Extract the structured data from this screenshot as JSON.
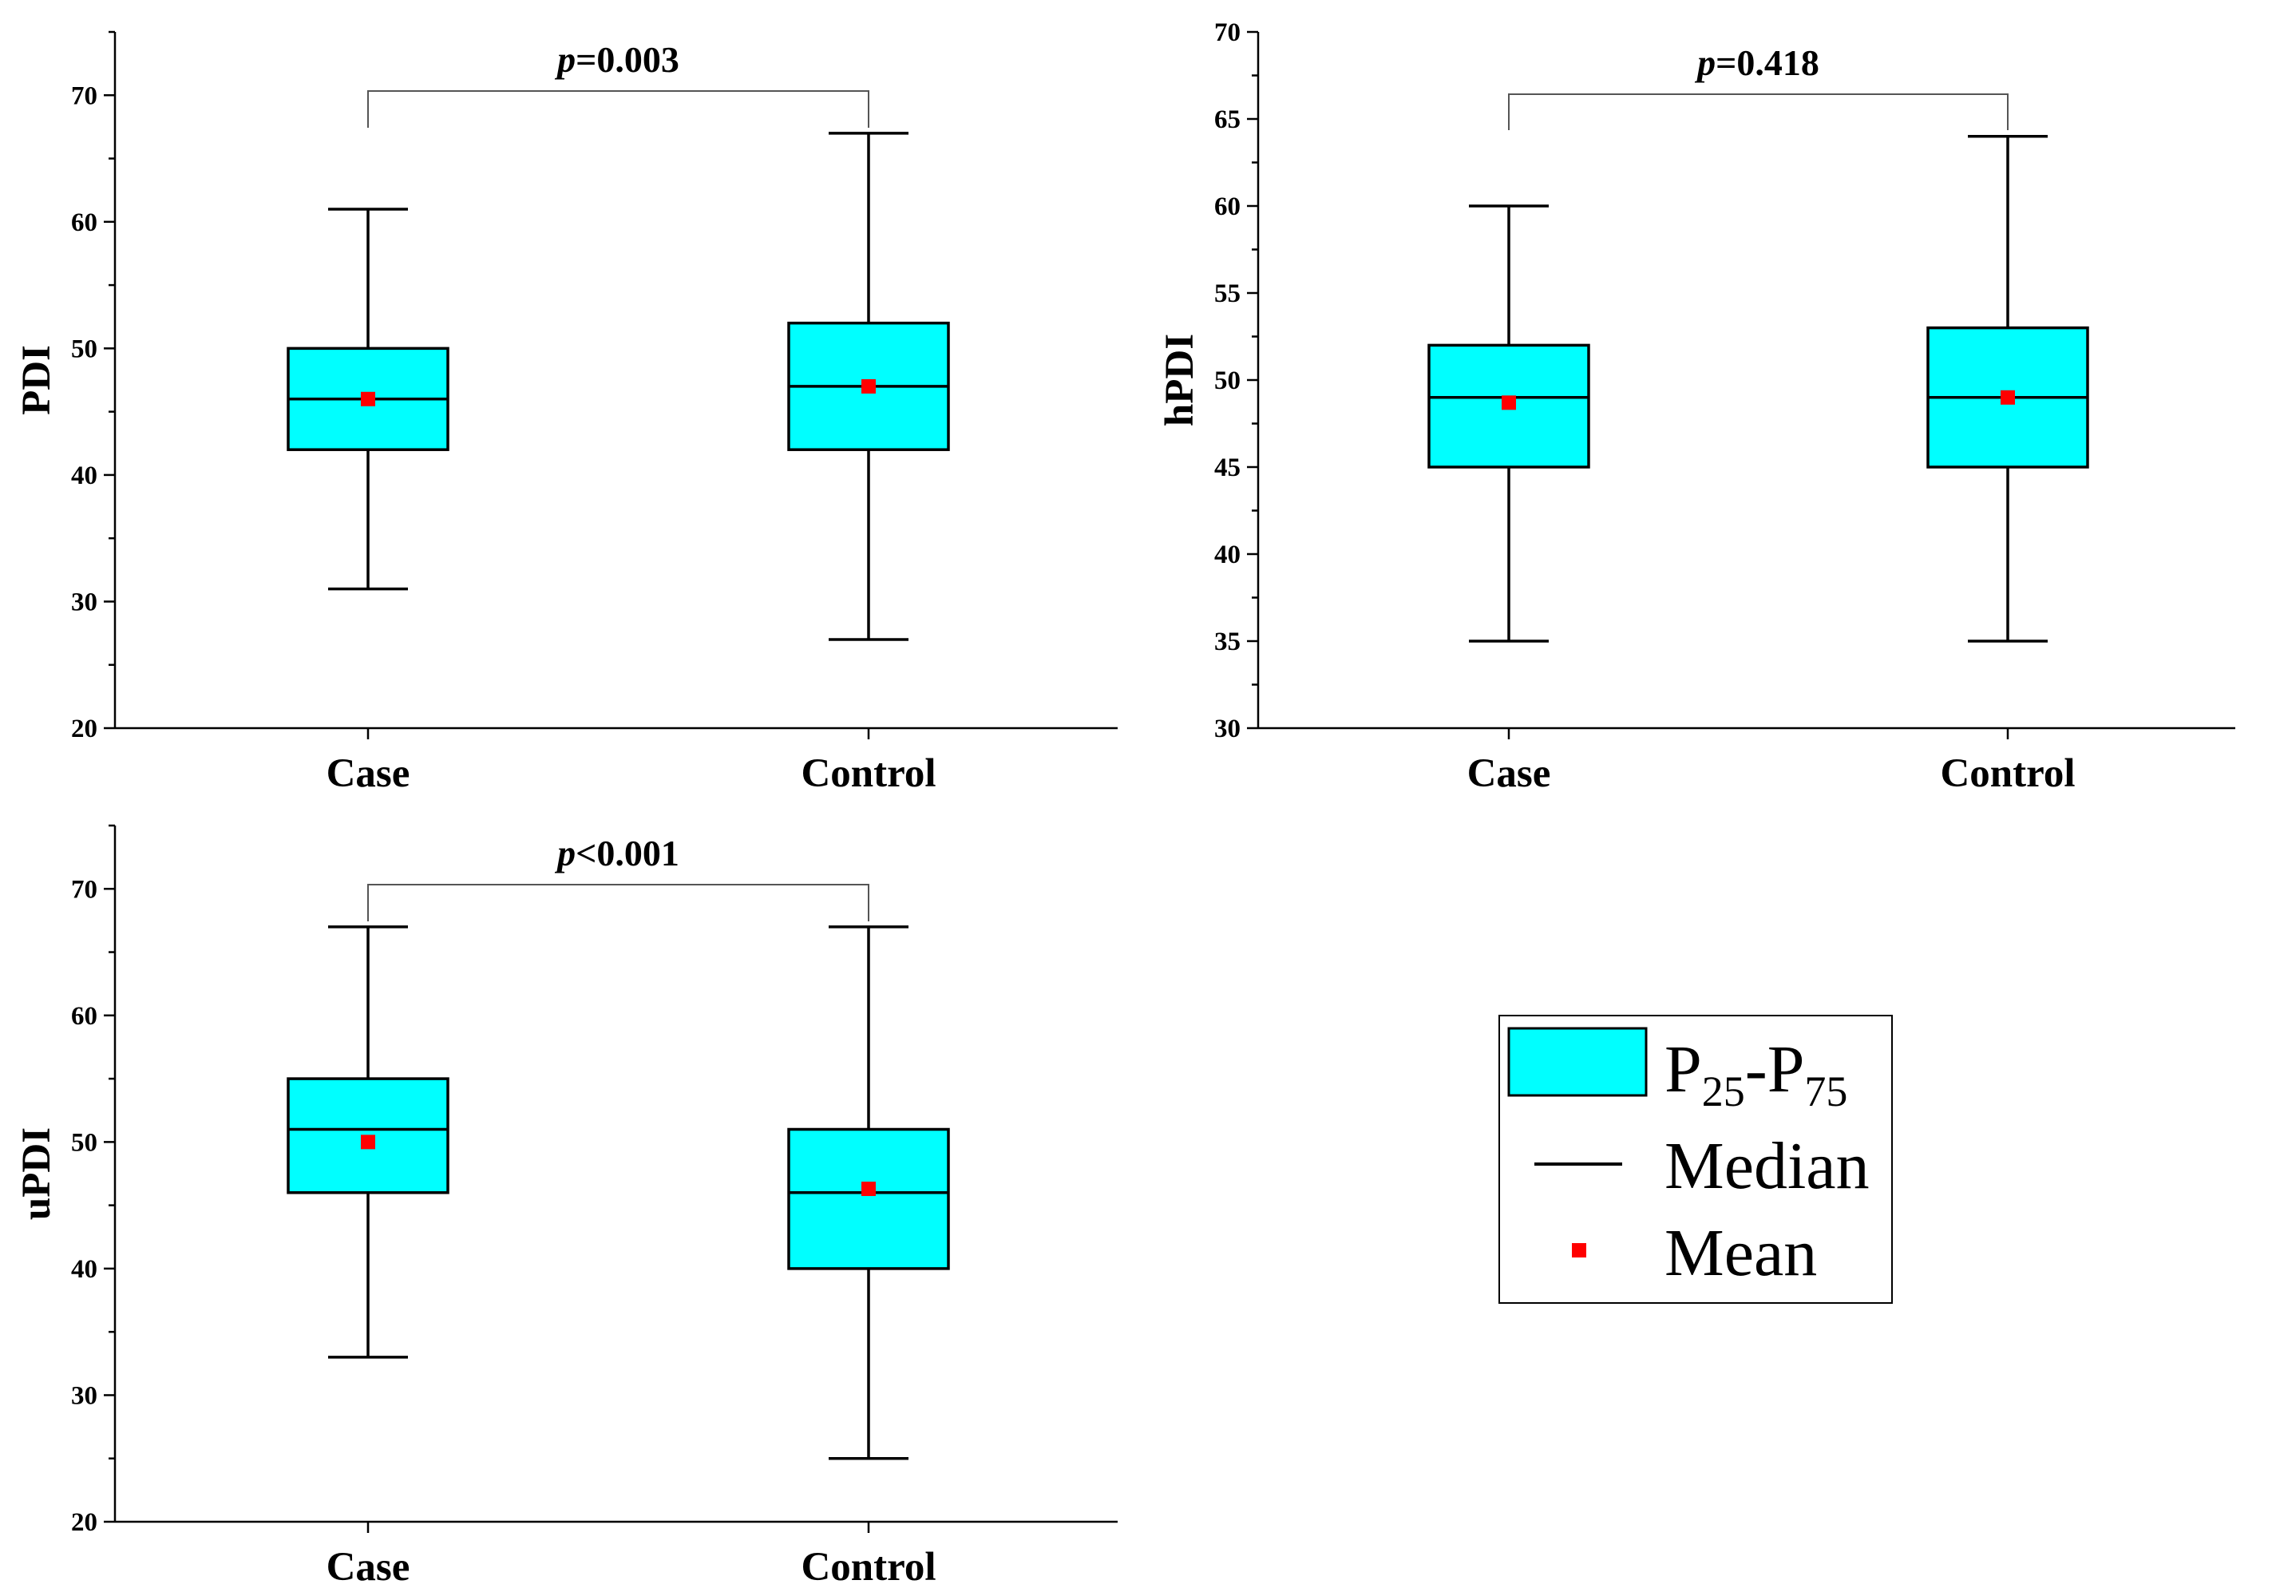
{
  "chart_data": [
    {
      "type": "box",
      "ylabel": "PDI",
      "categories": [
        "Case",
        "Control"
      ],
      "ylim": [
        20,
        75
      ],
      "yticks": [
        20,
        30,
        40,
        50,
        60,
        70
      ],
      "boxes": [
        {
          "category": "Case",
          "min": 31,
          "q1": 42,
          "median": 46,
          "q3": 50,
          "max": 61,
          "mean": 46
        },
        {
          "category": "Control",
          "min": 27,
          "q1": 42,
          "median": 47,
          "q3": 52,
          "max": 67,
          "mean": 47
        }
      ],
      "annotation": {
        "p_symbol": "p",
        "p_text": "=0.003"
      }
    },
    {
      "type": "box",
      "ylabel": "hPDI",
      "categories": [
        "Case",
        "Control"
      ],
      "ylim": [
        30,
        70
      ],
      "yticks": [
        30,
        35,
        40,
        45,
        50,
        55,
        60,
        65,
        70
      ],
      "boxes": [
        {
          "category": "Case",
          "min": 35,
          "q1": 45,
          "median": 49,
          "q3": 52,
          "max": 60,
          "mean": 48.7
        },
        {
          "category": "Control",
          "min": 35,
          "q1": 45,
          "median": 49,
          "q3": 53,
          "max": 64,
          "mean": 49
        }
      ],
      "annotation": {
        "p_symbol": "p",
        "p_text": "=0.418"
      }
    },
    {
      "type": "box",
      "ylabel": "uPDI",
      "categories": [
        "Case",
        "Control"
      ],
      "ylim": [
        20,
        75
      ],
      "yticks": [
        20,
        30,
        40,
        50,
        60,
        70
      ],
      "boxes": [
        {
          "category": "Case",
          "min": 33,
          "q1": 46,
          "median": 51,
          "q3": 55,
          "max": 67,
          "mean": 50
        },
        {
          "category": "Control",
          "min": 25,
          "q1": 40,
          "median": 46,
          "q3": 51,
          "max": 67,
          "mean": 46.3
        }
      ],
      "annotation": {
        "p_symbol": "p",
        "p_text": "<0.001"
      }
    }
  ],
  "legend": {
    "box_label_base": "P",
    "box_label_sub1": "25",
    "box_label_sep": "-",
    "box_label_sub2": "75",
    "median_label": "Median",
    "mean_label": "Mean"
  },
  "colors": {
    "box_fill": "#00FFFF",
    "mean_marker": "#FF0000",
    "lines": "#000000",
    "bracket": "#555555"
  }
}
